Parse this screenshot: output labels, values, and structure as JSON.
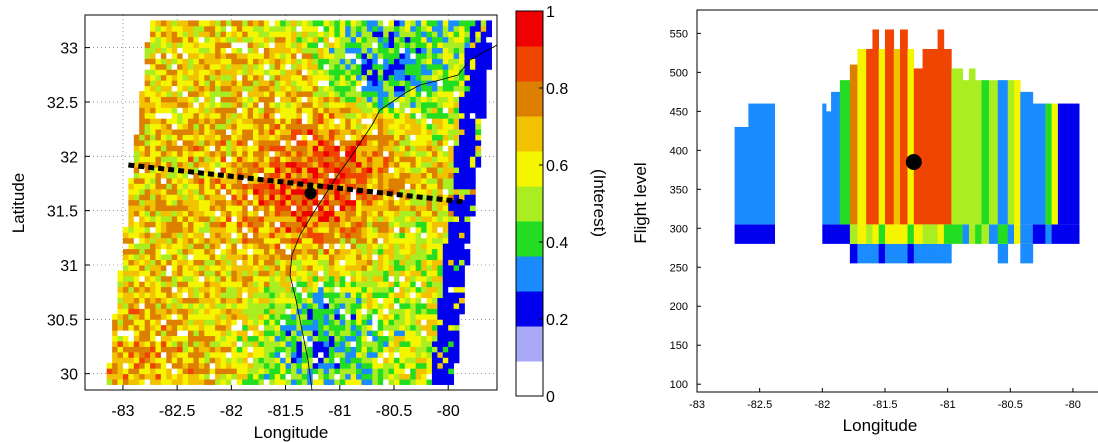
{
  "chart_data": [
    {
      "type": "heatmap",
      "title": "",
      "xlabel": "Longitude",
      "ylabel": "Latitude",
      "xlim": [
        -83.35,
        -79.55
      ],
      "ylim": [
        29.85,
        33.3
      ],
      "xticks": [
        "-83",
        "-82.5",
        "-82",
        "-81.5",
        "-81",
        "-80.5",
        "-80"
      ],
      "yticks": [
        "30",
        "30.5",
        "31",
        "31.5",
        "32",
        "32.5",
        "33"
      ],
      "grid": "dotted",
      "colorbar": {
        "label": "(Interest)",
        "range": [
          0,
          1
        ],
        "ticks": [
          "0",
          "0.2",
          "0.4",
          "0.6",
          "0.8",
          "1"
        ],
        "colors": [
          "#ffffff",
          "#a9a9f5",
          "#0000ee",
          "#1a8cff",
          "#22dd22",
          "#aaee22",
          "#f5f500",
          "#f2c200",
          "#dd8000",
          "#f04500",
          "#f00000"
        ]
      },
      "cross_section_line": {
        "from": [
          -82.95,
          31.92
        ],
        "to": [
          -79.85,
          31.58
        ]
      },
      "marker": {
        "lon": -81.27,
        "lat": 31.66
      },
      "regions": [
        {
          "lon": -81.3,
          "lat": 31.6,
          "interest": 0.9
        },
        {
          "lon": -81.0,
          "lat": 31.95,
          "interest": 0.9
        },
        {
          "lon": -82.0,
          "lat": 32.6,
          "interest": 0.6
        },
        {
          "lon": -80.6,
          "lat": 32.8,
          "interest": 0.2
        },
        {
          "lon": -81.2,
          "lat": 30.4,
          "interest": 0.2
        },
        {
          "lon": -82.3,
          "lat": 30.8,
          "interest": 0.6
        },
        {
          "lon": -82.7,
          "lat": 30.1,
          "interest": 0.7
        },
        {
          "lon": -80.3,
          "lat": 31.2,
          "interest": 0.5
        }
      ]
    },
    {
      "type": "heatmap",
      "title": "",
      "xlabel": "Longitude",
      "ylabel": "Flight level",
      "xlim": [
        -83,
        -79.8
      ],
      "ylim": [
        90,
        580
      ],
      "xticks": [
        "-83",
        "-82.5",
        "-82",
        "-81.5",
        "-81",
        "-80.5",
        "-80"
      ],
      "yticks": [
        "100",
        "150",
        "200",
        "250",
        "300",
        "350",
        "400",
        "450",
        "500",
        "550"
      ],
      "marker": {
        "lon": -81.27,
        "fl": 385
      },
      "columns": [
        {
          "x0": -82.7,
          "x1": -82.59,
          "bands": [
            {
              "y0": 280,
              "y1": 305,
              "interest": 0.15
            },
            {
              "y0": 305,
              "y1": 430,
              "interest": 0.3
            }
          ]
        },
        {
          "x0": -82.59,
          "x1": -82.38,
          "bands": [
            {
              "y0": 280,
              "y1": 305,
              "interest": 0.15
            },
            {
              "y0": 305,
              "y1": 460,
              "interest": 0.3
            }
          ]
        },
        {
          "x0": -82.0,
          "x1": -81.97,
          "bands": [
            {
              "y0": 280,
              "y1": 305,
              "interest": 0.15
            },
            {
              "y0": 305,
              "y1": 460,
              "interest": 0.3
            }
          ]
        },
        {
          "x0": -81.97,
          "x1": -81.93,
          "bands": [
            {
              "y0": 280,
              "y1": 305,
              "interest": 0.15
            },
            {
              "y0": 305,
              "y1": 450,
              "interest": 0.3
            }
          ]
        },
        {
          "x0": -81.93,
          "x1": -81.86,
          "bands": [
            {
              "y0": 280,
              "y1": 305,
              "interest": 0.15
            },
            {
              "y0": 305,
              "y1": 475,
              "interest": 0.3
            }
          ]
        },
        {
          "x0": -81.86,
          "x1": -81.78,
          "bands": [
            {
              "y0": 280,
              "y1": 305,
              "interest": 0.15
            },
            {
              "y0": 305,
              "y1": 490,
              "interest": 0.35
            }
          ]
        },
        {
          "x0": -81.78,
          "x1": -81.72,
          "bands": [
            {
              "y0": 255,
              "y1": 280,
              "interest": 0.15
            },
            {
              "y0": 280,
              "y1": 305,
              "interest": 0.5
            },
            {
              "y0": 305,
              "y1": 510,
              "interest": 0.75
            }
          ]
        },
        {
          "x0": -81.72,
          "x1": -81.65,
          "bands": [
            {
              "y0": 255,
              "y1": 280,
              "interest": 0.3
            },
            {
              "y0": 280,
              "y1": 305,
              "interest": 0.6
            },
            {
              "y0": 305,
              "y1": 530,
              "interest": 0.6
            }
          ]
        },
        {
          "x0": -81.65,
          "x1": -81.6,
          "bands": [
            {
              "y0": 255,
              "y1": 280,
              "interest": 0.3
            },
            {
              "y0": 280,
              "y1": 305,
              "interest": 0.5
            },
            {
              "y0": 305,
              "y1": 530,
              "interest": 0.9
            }
          ]
        },
        {
          "x0": -81.6,
          "x1": -81.55,
          "bands": [
            {
              "y0": 255,
              "y1": 280,
              "interest": 0.3
            },
            {
              "y0": 280,
              "y1": 305,
              "interest": 0.6
            },
            {
              "y0": 305,
              "y1": 555,
              "interest": 0.9
            }
          ]
        },
        {
          "x0": -81.55,
          "x1": -81.5,
          "bands": [
            {
              "y0": 255,
              "y1": 280,
              "interest": 0.15
            },
            {
              "y0": 280,
              "y1": 305,
              "interest": 0.4
            },
            {
              "y0": 305,
              "y1": 530,
              "interest": 0.55
            }
          ]
        },
        {
          "x0": -81.5,
          "x1": -81.43,
          "bands": [
            {
              "y0": 255,
              "y1": 280,
              "interest": 0.3
            },
            {
              "y0": 280,
              "y1": 305,
              "interest": 0.6
            },
            {
              "y0": 305,
              "y1": 555,
              "interest": 0.9
            }
          ]
        },
        {
          "x0": -81.43,
          "x1": -81.38,
          "bands": [
            {
              "y0": 255,
              "y1": 280,
              "interest": 0.3
            },
            {
              "y0": 280,
              "y1": 305,
              "interest": 0.6
            },
            {
              "y0": 305,
              "y1": 530,
              "interest": 0.7
            }
          ]
        },
        {
          "x0": -81.38,
          "x1": -81.32,
          "bands": [
            {
              "y0": 255,
              "y1": 280,
              "interest": 0.3
            },
            {
              "y0": 280,
              "y1": 305,
              "interest": 0.6
            },
            {
              "y0": 305,
              "y1": 555,
              "interest": 0.9
            }
          ]
        },
        {
          "x0": -81.32,
          "x1": -81.27,
          "bands": [
            {
              "y0": 255,
              "y1": 280,
              "interest": 0.15
            },
            {
              "y0": 280,
              "y1": 305,
              "interest": 0.4
            },
            {
              "y0": 305,
              "y1": 530,
              "interest": 0.55
            }
          ]
        },
        {
          "x0": -81.27,
          "x1": -81.2,
          "bands": [
            {
              "y0": 255,
              "y1": 280,
              "interest": 0.3
            },
            {
              "y0": 280,
              "y1": 305,
              "interest": 0.6
            },
            {
              "y0": 305,
              "y1": 505,
              "interest": 0.9
            }
          ]
        },
        {
          "x0": -81.2,
          "x1": -81.08,
          "bands": [
            {
              "y0": 255,
              "y1": 280,
              "interest": 0.3
            },
            {
              "y0": 280,
              "y1": 305,
              "interest": 0.5
            },
            {
              "y0": 305,
              "y1": 530,
              "interest": 0.9
            }
          ]
        },
        {
          "x0": -81.08,
          "x1": -81.03,
          "bands": [
            {
              "y0": 255,
              "y1": 280,
              "interest": 0.3
            },
            {
              "y0": 280,
              "y1": 305,
              "interest": 0.6
            },
            {
              "y0": 305,
              "y1": 555,
              "interest": 0.9
            }
          ]
        },
        {
          "x0": -81.03,
          "x1": -80.97,
          "bands": [
            {
              "y0": 255,
              "y1": 280,
              "interest": 0.3
            },
            {
              "y0": 280,
              "y1": 305,
              "interest": 0.4
            },
            {
              "y0": 305,
              "y1": 530,
              "interest": 0.9
            }
          ]
        },
        {
          "x0": -80.97,
          "x1": -80.88,
          "bands": [
            {
              "y0": 280,
              "y1": 305,
              "interest": 0.4
            },
            {
              "y0": 305,
              "y1": 505,
              "interest": 0.5
            }
          ]
        },
        {
          "x0": -80.88,
          "x1": -80.83,
          "bands": [
            {
              "y0": 280,
              "y1": 305,
              "interest": 0.3
            },
            {
              "y0": 305,
              "y1": 490,
              "interest": 0.5
            }
          ]
        },
        {
          "x0": -80.83,
          "x1": -80.78,
          "bands": [
            {
              "y0": 280,
              "y1": 305,
              "interest": 0.5
            },
            {
              "y0": 305,
              "y1": 505,
              "interest": 0.5
            }
          ]
        },
        {
          "x0": -80.78,
          "x1": -80.73,
          "bands": [
            {
              "y0": 280,
              "y1": 305,
              "interest": 0.4
            },
            {
              "y0": 305,
              "y1": 490,
              "interest": 0.5
            }
          ]
        },
        {
          "x0": -80.73,
          "x1": -80.67,
          "bands": [
            {
              "y0": 280,
              "y1": 305,
              "interest": 0.5
            },
            {
              "y0": 305,
              "y1": 490,
              "interest": 0.35
            }
          ]
        },
        {
          "x0": -80.67,
          "x1": -80.6,
          "bands": [
            {
              "y0": 280,
              "y1": 305,
              "interest": 0.3
            },
            {
              "y0": 305,
              "y1": 490,
              "interest": 0.5
            }
          ]
        },
        {
          "x0": -80.6,
          "x1": -80.52,
          "bands": [
            {
              "y0": 255,
              "y1": 280,
              "interest": 0.3
            },
            {
              "y0": 280,
              "y1": 305,
              "interest": 0.4
            },
            {
              "y0": 305,
              "y1": 490,
              "interest": 0.3
            }
          ]
        },
        {
          "x0": -80.52,
          "x1": -80.47,
          "bands": [
            {
              "y0": 280,
              "y1": 305,
              "interest": 0.3
            },
            {
              "y0": 305,
              "y1": 490,
              "interest": 0.5
            }
          ]
        },
        {
          "x0": -80.47,
          "x1": -80.42,
          "bands": [
            {
              "y0": 280,
              "y1": 305,
              "interest": 0.6
            },
            {
              "y0": 305,
              "y1": 490,
              "interest": 0.6
            }
          ]
        },
        {
          "x0": -80.42,
          "x1": -80.32,
          "bands": [
            {
              "y0": 255,
              "y1": 280,
              "interest": 0.3
            },
            {
              "y0": 280,
              "y1": 305,
              "interest": 0.3
            },
            {
              "y0": 305,
              "y1": 475,
              "interest": 0.3
            }
          ]
        },
        {
          "x0": -80.32,
          "x1": -80.22,
          "bands": [
            {
              "y0": 280,
              "y1": 305,
              "interest": 0.15
            },
            {
              "y0": 305,
              "y1": 460,
              "interest": 0.3
            }
          ]
        },
        {
          "x0": -80.22,
          "x1": -80.17,
          "bands": [
            {
              "y0": 280,
              "y1": 305,
              "interest": 0.3
            },
            {
              "y0": 305,
              "y1": 460,
              "interest": 0.35
            }
          ]
        },
        {
          "x0": -80.17,
          "x1": -80.12,
          "bands": [
            {
              "y0": 280,
              "y1": 305,
              "interest": 0.15
            },
            {
              "y0": 305,
              "y1": 460,
              "interest": 0.6
            }
          ]
        },
        {
          "x0": -80.12,
          "x1": -79.95,
          "bands": [
            {
              "y0": 280,
              "y1": 305,
              "interest": 0.15
            },
            {
              "y0": 305,
              "y1": 460,
              "interest": 0.15
            }
          ]
        }
      ]
    }
  ]
}
